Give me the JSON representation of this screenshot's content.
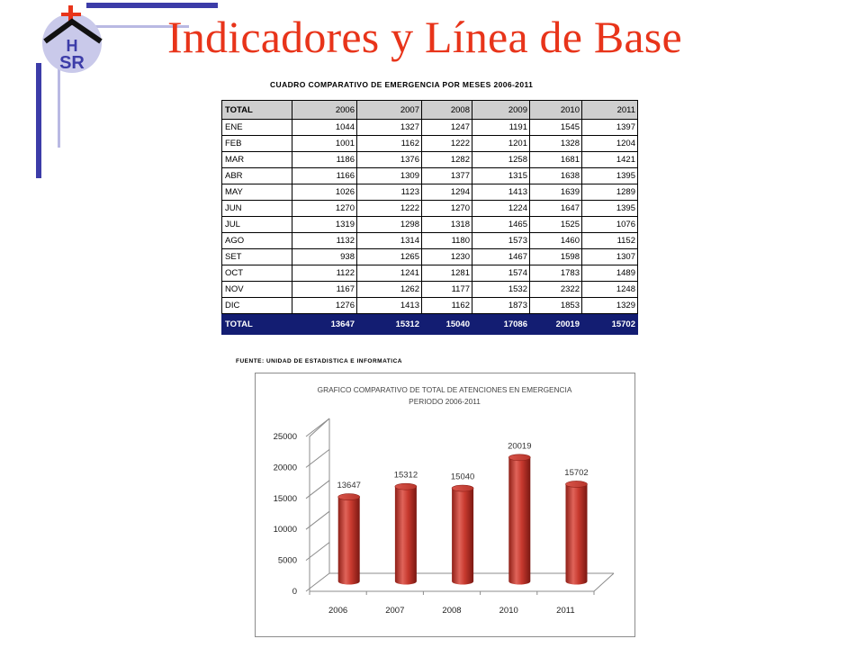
{
  "slide": {
    "title": "Indicadores y Línea de Base",
    "logo_text": "HSR",
    "accent_color": "#e8341a",
    "frame_color": "#3c3ca8"
  },
  "table": {
    "title": "CUADRO COMPARATIVO DE EMERGENCIA POR MESES 2006-2011",
    "header": [
      "TOTAL",
      "2006",
      "2007",
      "2008",
      "2009",
      "2010",
      "2011"
    ],
    "rows": [
      [
        "ENE",
        "1044",
        "1327",
        "1247",
        "1191",
        "1545",
        "1397"
      ],
      [
        "FEB",
        "1001",
        "1162",
        "1222",
        "1201",
        "1328",
        "1204"
      ],
      [
        "MAR",
        "1186",
        "1376",
        "1282",
        "1258",
        "1681",
        "1421"
      ],
      [
        "ABR",
        "1166",
        "1309",
        "1377",
        "1315",
        "1638",
        "1395"
      ],
      [
        "MAY",
        "1026",
        "1123",
        "1294",
        "1413",
        "1639",
        "1289"
      ],
      [
        "JUN",
        "1270",
        "1222",
        "1270",
        "1224",
        "1647",
        "1395"
      ],
      [
        "JUL",
        "1319",
        "1298",
        "1318",
        "1465",
        "1525",
        "1076"
      ],
      [
        "AGO",
        "1132",
        "1314",
        "1180",
        "1573",
        "1460",
        "1152"
      ],
      [
        "SET",
        "938",
        "1265",
        "1230",
        "1467",
        "1598",
        "1307"
      ],
      [
        "OCT",
        "1122",
        "1241",
        "1281",
        "1574",
        "1783",
        "1489"
      ],
      [
        "NOV",
        "1167",
        "1262",
        "1177",
        "1532",
        "2322",
        "1248"
      ],
      [
        "DIC",
        "1276",
        "1413",
        "1162",
        "1873",
        "1853",
        "1329"
      ]
    ],
    "footer": [
      "TOTAL",
      "13647",
      "15312",
      "15040",
      "17086",
      "20019",
      "15702"
    ],
    "source": "FUENTE: UNIDAD DE ESTADISTICA E INFORMATICA",
    "footer_color": "#131d72",
    "header_color": "#cfcfcf"
  },
  "chart_data": {
    "type": "bar",
    "title": "GRAFICO COMPARATIVO DE TOTAL DE ATENCIONES EN EMERGENCIA",
    "subtitle": "PERIODO 2006-2011",
    "categories": [
      "2006",
      "2007",
      "2008",
      "2010",
      "2011"
    ],
    "values": [
      13647,
      15312,
      15040,
      20019,
      15702
    ],
    "data_labels": [
      "13647",
      "15312",
      "15040",
      "20019",
      "15702"
    ],
    "ylim": [
      0,
      25000
    ],
    "yticks": [
      "0",
      "5000",
      "10000",
      "15000",
      "20000",
      "25000"
    ],
    "xlabel": "",
    "ylabel": "",
    "bar_style": "3d-cylinder",
    "bar_color": "#c0392b",
    "grid": false,
    "legend": "none"
  }
}
